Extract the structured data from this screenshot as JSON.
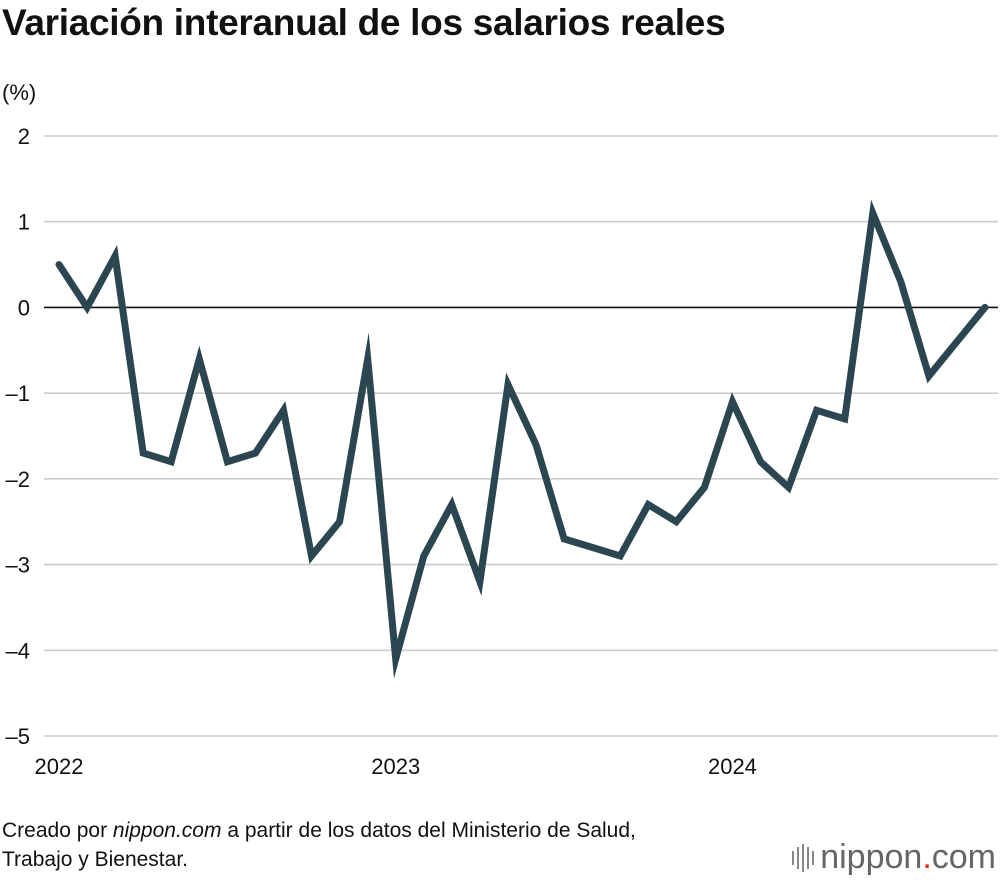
{
  "title": "Variación interanual de los salarios reales",
  "unit_label": "(%)",
  "source": {
    "prefix": "Creado por ",
    "site": "nippon.com",
    "suffix": " a partir de los datos del Ministerio de Salud,",
    "line2": "Trabajo y Bienestar."
  },
  "logo": {
    "word": "nippon",
    "dot": ".",
    "tld": "com"
  },
  "colors": {
    "line": "#2b4650",
    "grid": "#cccccc",
    "zero": "#111111"
  },
  "chart_data": {
    "type": "line",
    "title": "Variación interanual de los salarios reales",
    "ylabel": "(%)",
    "xlabel": "",
    "ylim": [
      -5,
      2
    ],
    "yticks": [
      2,
      1,
      0,
      -1,
      -2,
      -3,
      -4,
      -5
    ],
    "ytick_labels": [
      "2",
      "1",
      "0",
      "–1",
      "–2",
      "–3",
      "–4",
      "–5"
    ],
    "xtick_labels": [
      "2022",
      "2023",
      "2024"
    ],
    "xtick_index": [
      0,
      12,
      24
    ],
    "grid": true,
    "series": [
      {
        "name": "Salarios reales",
        "values": [
          0.5,
          0.0,
          0.6,
          -1.7,
          -1.8,
          -0.6,
          -1.8,
          -1.7,
          -1.2,
          -2.9,
          -2.5,
          -0.6,
          -4.1,
          -2.9,
          -2.3,
          -3.2,
          -0.9,
          -1.6,
          -2.7,
          -2.8,
          -2.9,
          -2.3,
          -2.5,
          -2.1,
          -1.1,
          -1.8,
          -2.1,
          -1.2,
          -1.3,
          1.1,
          0.3,
          -0.8,
          -0.4,
          0.0
        ]
      }
    ]
  }
}
